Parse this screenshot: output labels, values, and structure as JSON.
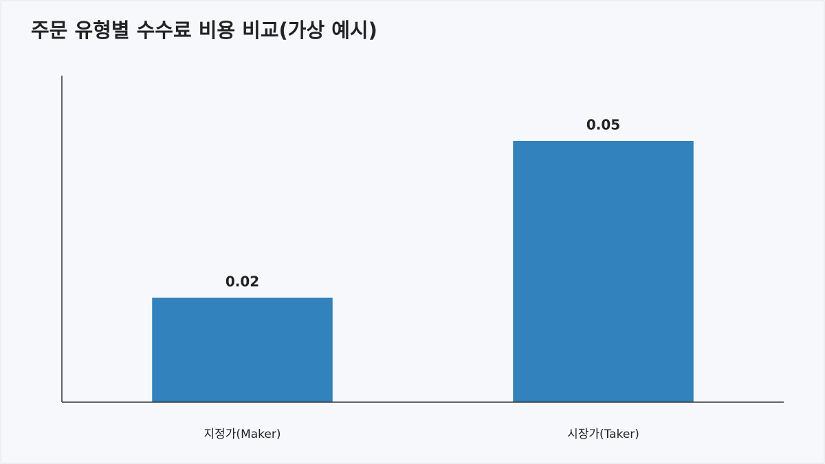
{
  "chart_data": {
    "type": "bar",
    "title": "주문 유형별 수수료 비용 비교(가상 예시)",
    "categories": [
      "지정가(Maker)",
      "시장가(Taker)"
    ],
    "values": [
      0.02,
      0.05
    ],
    "color": "#3182bd",
    "ylim": [
      0,
      0.0625
    ]
  }
}
